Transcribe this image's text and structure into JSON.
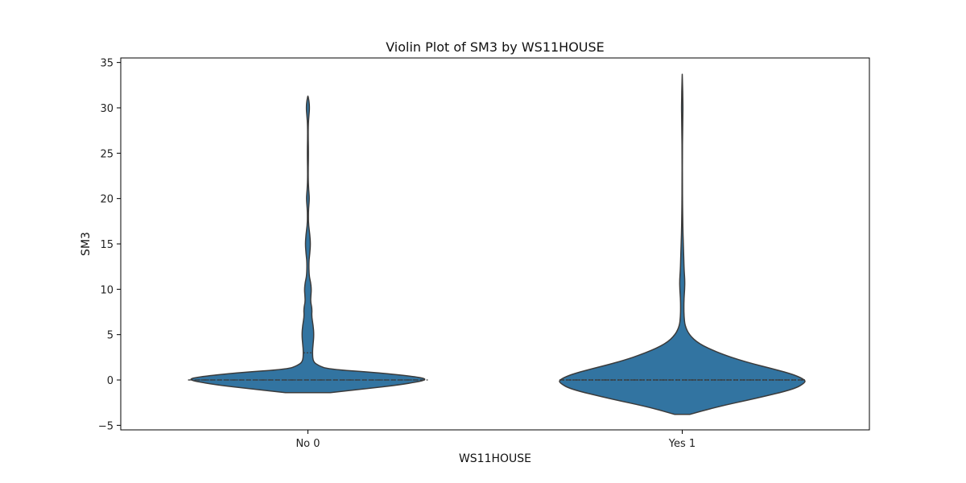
{
  "chart_data": {
    "type": "violin",
    "title": "Violin Plot of SM3 by WS11HOUSE",
    "xlabel": "WS11HOUSE",
    "ylabel": "SM3",
    "categories": [
      "No 0",
      "Yes 1"
    ],
    "ylim": [
      -5.5,
      35.5
    ],
    "yticks": [
      -5,
      0,
      5,
      10,
      15,
      20,
      25,
      30,
      35
    ],
    "grid": false,
    "color": "#3274a1",
    "edge_color": "#3b3b3b",
    "violins": [
      {
        "category": "No 0",
        "quartiles": [
          0,
          0,
          3
        ],
        "density": [
          [
            -1.4,
            0.15
          ],
          [
            -1.0,
            0.37
          ],
          [
            -0.5,
            0.63
          ],
          [
            0,
            0.8
          ],
          [
            0.3,
            0.75
          ],
          [
            0.8,
            0.47
          ],
          [
            1.2,
            0.13
          ],
          [
            1.6,
            0.07
          ],
          [
            2.0,
            0.035
          ],
          [
            3.0,
            0.03
          ],
          [
            4.0,
            0.035
          ],
          [
            5.0,
            0.04
          ],
          [
            6.0,
            0.035
          ],
          [
            7.0,
            0.025
          ],
          [
            7.8,
            0.028
          ],
          [
            8.6,
            0.018
          ],
          [
            9.3,
            0.02
          ],
          [
            10.0,
            0.023
          ],
          [
            10.8,
            0.018
          ],
          [
            11.5,
            0.008
          ],
          [
            13.0,
            0.006
          ],
          [
            14.0,
            0.013
          ],
          [
            15.0,
            0.017
          ],
          [
            16.0,
            0.013
          ],
          [
            17.0,
            0.005
          ],
          [
            18.0,
            0.003
          ],
          [
            19.0,
            0.005
          ],
          [
            20.0,
            0.01
          ],
          [
            21.0,
            0.005
          ],
          [
            22.0,
            0.002
          ],
          [
            23.5,
            0.002
          ],
          [
            25.0,
            0.004
          ],
          [
            26.5,
            0.002
          ],
          [
            28.0,
            0.002
          ],
          [
            29.2,
            0.007
          ],
          [
            30.0,
            0.011
          ],
          [
            30.8,
            0.007
          ],
          [
            31.3,
            0.001
          ]
        ]
      },
      {
        "category": "Yes 1",
        "quartiles": [
          0,
          0,
          0
        ],
        "density": [
          [
            -3.8,
            0.05
          ],
          [
            -3.0,
            0.22
          ],
          [
            -2.0,
            0.5
          ],
          [
            -1.0,
            0.75
          ],
          [
            -0.3,
            0.82
          ],
          [
            0.0,
            0.82
          ],
          [
            0.5,
            0.76
          ],
          [
            1.0,
            0.66
          ],
          [
            2.0,
            0.42
          ],
          [
            3.0,
            0.24
          ],
          [
            4.0,
            0.11
          ],
          [
            5.0,
            0.045
          ],
          [
            6.0,
            0.018
          ],
          [
            7.0,
            0.012
          ],
          [
            8.0,
            0.011
          ],
          [
            9.0,
            0.012
          ],
          [
            10.0,
            0.016
          ],
          [
            11.0,
            0.017
          ],
          [
            12.0,
            0.013
          ],
          [
            13.0,
            0.011
          ],
          [
            15.0,
            0.007
          ],
          [
            17.0,
            0.004
          ],
          [
            19.0,
            0.002
          ],
          [
            22.0,
            0.001
          ],
          [
            25.0,
            0.001
          ],
          [
            27.0,
            0.002
          ],
          [
            29.0,
            0.004
          ],
          [
            30.0,
            0.005
          ],
          [
            31.0,
            0.004
          ],
          [
            32.5,
            0.002
          ],
          [
            33.7,
            0.0
          ]
        ]
      }
    ]
  }
}
